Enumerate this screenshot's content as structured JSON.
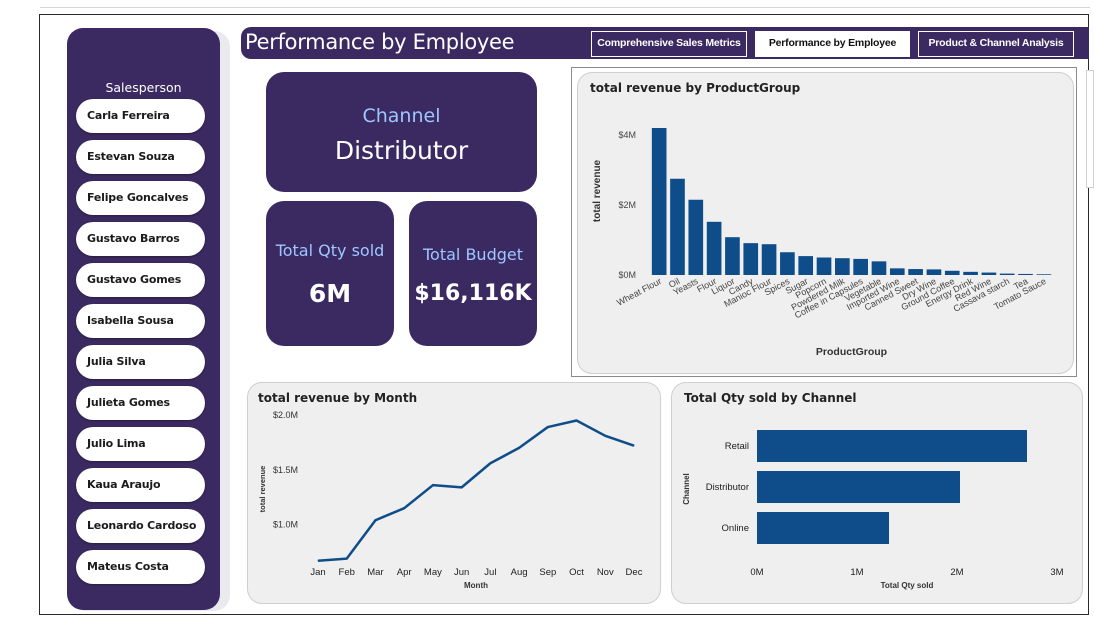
{
  "header": {
    "title": "Performance by Employee",
    "nav": [
      {
        "label": "Comprehensive Sales Metrics",
        "active": false
      },
      {
        "label": "Performance by Employee",
        "active": true
      },
      {
        "label": "Product & Channel Analysis",
        "active": false
      }
    ]
  },
  "sidebar": {
    "title": "Salesperson",
    "items": [
      "Carla Ferreira",
      "Estevan Souza",
      "Felipe Goncalves",
      "Gustavo Barros",
      "Gustavo Gomes",
      "Isabella Sousa",
      "Julia Silva",
      "Julieta Gomes",
      "Julio Lima",
      "Kaua Araujo",
      "Leonardo Cardoso",
      "Mateus Costa"
    ]
  },
  "cards": {
    "channel": {
      "label": "Channel",
      "value": "Distributor"
    },
    "qty": {
      "label": "Total Qty sold",
      "value": "6M"
    },
    "budget": {
      "label": "Total Budget",
      "value": "$16,116K"
    }
  },
  "colors": {
    "brand": "#3b2a61",
    "series": "#0f4c8a",
    "label": "#9ec6ff"
  },
  "chart_data": [
    {
      "id": "revenue_by_productgroup",
      "type": "bar",
      "title": "total revenue by ProductGroup",
      "xlabel": "ProductGroup",
      "ylabel": "total revenue",
      "ylim": [
        0,
        4000000
      ],
      "yticks": [
        0,
        2000000,
        4000000
      ],
      "ytick_labels": [
        "$0M",
        "$2M",
        "$4M"
      ],
      "categories": [
        "Wheat Flour",
        "Oil",
        "Yeasts",
        "Flour",
        "Liquor",
        "Candy",
        "Manioc Flour",
        "Spices",
        "Sugar",
        "Popcorn",
        "Powdered Milk",
        "Coffee in Capsules",
        "Vegetable",
        "Imported Wine",
        "Canned Sweet",
        "Dry Wine",
        "Ground Coffee",
        "Energy Drink",
        "Red Wine",
        "Cassava starch",
        "Tea",
        "Tomato Sauce"
      ],
      "values": [
        4200000,
        2750000,
        2150000,
        1520000,
        1080000,
        910000,
        880000,
        650000,
        540000,
        500000,
        480000,
        460000,
        390000,
        190000,
        170000,
        160000,
        120000,
        90000,
        70000,
        40000,
        30000,
        20000
      ]
    },
    {
      "id": "revenue_by_month",
      "type": "line",
      "title": "total revenue by Month",
      "xlabel": "Month",
      "ylabel": "total revenue",
      "ylim": [
        0.65,
        2.0
      ],
      "yticks": [
        1.0,
        1.5,
        2.0
      ],
      "ytick_labels": [
        "$1.0M",
        "$1.5M",
        "$2.0M"
      ],
      "categories": [
        "Jan",
        "Feb",
        "Mar",
        "Apr",
        "May",
        "Jun",
        "Jul",
        "Aug",
        "Sep",
        "Oct",
        "Nov",
        "Dec"
      ],
      "values": [
        0.67,
        0.69,
        1.04,
        1.15,
        1.36,
        1.34,
        1.56,
        1.7,
        1.89,
        1.95,
        1.81,
        1.72
      ]
    },
    {
      "id": "qty_by_channel",
      "type": "bar",
      "orientation": "horizontal",
      "title": "Total Qty sold by Channel",
      "xlabel": "Total Qty sold",
      "ylabel": "Channel",
      "xlim": [
        0,
        3000000
      ],
      "xticks": [
        0,
        1000000,
        2000000,
        3000000
      ],
      "xtick_labels": [
        "0M",
        "1M",
        "2M",
        "3M"
      ],
      "categories": [
        "Retail",
        "Distributor",
        "Online"
      ],
      "values": [
        2700000,
        2030000,
        1320000
      ]
    }
  ]
}
